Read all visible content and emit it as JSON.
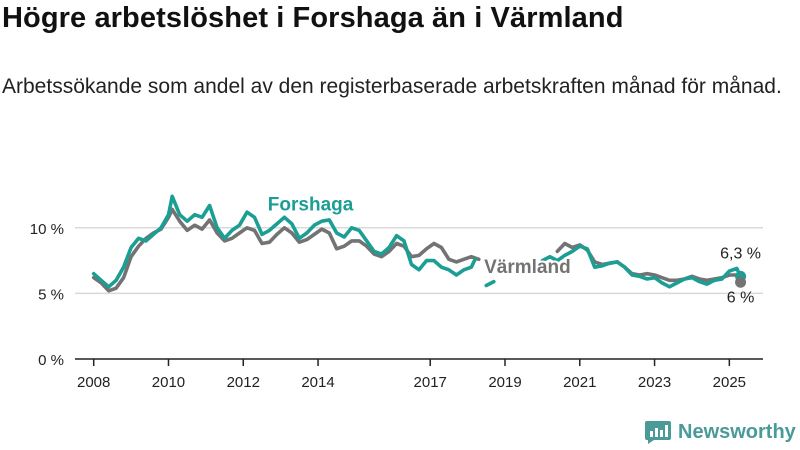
{
  "header": {
    "title": "Högre arbetslöshet i Forshaga än i Värmland",
    "subtitle": "Arbetssökande som andel av den registerbaserade arbetskraften månad för månad."
  },
  "branding": {
    "name": "Newsworthy",
    "icon": "newsworthy-logo-icon",
    "color": "#4a9a98"
  },
  "colors": {
    "forshaga": "#1b9e94",
    "varmland": "#737373",
    "grid": "#d9d9d9",
    "axis": "#222222"
  },
  "chart_data": {
    "type": "line",
    "ylim": [
      0,
      12.5
    ],
    "xlim": [
      2007.5,
      2025.9
    ],
    "y_ticks": [
      {
        "value": 0,
        "label": "0 %"
      },
      {
        "value": 5,
        "label": "5 %"
      },
      {
        "value": 10,
        "label": "10 %"
      }
    ],
    "x_ticks": [
      {
        "value": 2008,
        "label": "2008"
      },
      {
        "value": 2010,
        "label": "2010"
      },
      {
        "value": 2012,
        "label": "2012"
      },
      {
        "value": 2014,
        "label": "2014"
      },
      {
        "value": 2017,
        "label": "2017"
      },
      {
        "value": 2019,
        "label": "2019"
      },
      {
        "value": 2021,
        "label": "2021"
      },
      {
        "value": 2023,
        "label": "2023"
      },
      {
        "value": 2025,
        "label": "2025"
      }
    ],
    "grid": true,
    "series": [
      {
        "name": "Forshaga",
        "color": "#1b9e94",
        "segments": [
          [
            [
              2008.0,
              6.5
            ],
            [
              2008.2,
              6.0
            ],
            [
              2008.4,
              5.5
            ],
            [
              2008.6,
              6.0
            ],
            [
              2008.8,
              7.0
            ],
            [
              2009.0,
              8.5
            ],
            [
              2009.2,
              9.2
            ],
            [
              2009.4,
              9.0
            ],
            [
              2009.6,
              9.5
            ],
            [
              2009.8,
              10.0
            ],
            [
              2010.0,
              11.0
            ],
            [
              2010.1,
              12.4
            ],
            [
              2010.3,
              11.0
            ],
            [
              2010.5,
              10.5
            ],
            [
              2010.7,
              11.0
            ],
            [
              2010.9,
              10.8
            ],
            [
              2011.1,
              11.7
            ],
            [
              2011.3,
              10.0
            ],
            [
              2011.5,
              9.2
            ],
            [
              2011.7,
              9.8
            ],
            [
              2011.9,
              10.2
            ],
            [
              2012.1,
              11.2
            ],
            [
              2012.3,
              10.8
            ],
            [
              2012.5,
              9.5
            ],
            [
              2012.7,
              9.8
            ],
            [
              2012.9,
              10.3
            ],
            [
              2013.1,
              10.8
            ],
            [
              2013.3,
              10.3
            ],
            [
              2013.5,
              9.2
            ],
            [
              2013.7,
              9.6
            ],
            [
              2013.9,
              10.2
            ],
            [
              2014.1,
              10.5
            ],
            [
              2014.3,
              10.6
            ],
            [
              2014.5,
              9.6
            ],
            [
              2014.7,
              9.3
            ],
            [
              2014.9,
              10.0
            ],
            [
              2015.1,
              9.8
            ],
            [
              2015.3,
              9.0
            ],
            [
              2015.5,
              8.2
            ],
            [
              2015.7,
              8.0
            ],
            [
              2015.9,
              8.5
            ],
            [
              2016.1,
              9.4
            ],
            [
              2016.3,
              9.0
            ],
            [
              2016.5,
              7.2
            ],
            [
              2016.7,
              6.8
            ],
            [
              2016.9,
              7.5
            ],
            [
              2017.1,
              7.5
            ],
            [
              2017.3,
              7.0
            ],
            [
              2017.5,
              6.8
            ],
            [
              2017.7,
              6.4
            ],
            [
              2017.9,
              6.8
            ],
            [
              2018.1,
              7.0
            ],
            [
              2018.2,
              7.6
            ]
          ],
          [
            [
              2018.5,
              5.6
            ],
            [
              2018.7,
              5.9
            ]
          ],
          [
            [
              2020.0,
              7.5
            ],
            [
              2020.2,
              7.8
            ],
            [
              2020.4,
              7.5
            ],
            [
              2020.6,
              7.9
            ],
            [
              2020.8,
              8.2
            ],
            [
              2021.0,
              8.6
            ],
            [
              2021.2,
              8.4
            ],
            [
              2021.4,
              7.0
            ],
            [
              2021.6,
              7.1
            ],
            [
              2021.8,
              7.3
            ],
            [
              2022.0,
              7.4
            ],
            [
              2022.2,
              7.0
            ],
            [
              2022.4,
              6.4
            ],
            [
              2022.6,
              6.3
            ],
            [
              2022.8,
              6.1
            ],
            [
              2023.0,
              6.2
            ],
            [
              2023.2,
              5.8
            ],
            [
              2023.4,
              5.5
            ],
            [
              2023.6,
              5.8
            ],
            [
              2023.8,
              6.1
            ],
            [
              2024.0,
              6.2
            ],
            [
              2024.2,
              5.9
            ],
            [
              2024.4,
              5.7
            ],
            [
              2024.6,
              6.0
            ],
            [
              2024.8,
              6.1
            ],
            [
              2025.0,
              6.7
            ],
            [
              2025.2,
              6.9
            ],
            [
              2025.3,
              6.3
            ]
          ]
        ],
        "end_label": "6,3 %"
      },
      {
        "name": "Värmland",
        "color": "#737373",
        "segments": [
          [
            [
              2008.0,
              6.2
            ],
            [
              2008.2,
              5.8
            ],
            [
              2008.4,
              5.2
            ],
            [
              2008.6,
              5.4
            ],
            [
              2008.8,
              6.2
            ],
            [
              2009.0,
              7.8
            ],
            [
              2009.2,
              8.6
            ],
            [
              2009.4,
              9.2
            ],
            [
              2009.6,
              9.6
            ],
            [
              2009.8,
              9.9
            ],
            [
              2010.0,
              10.8
            ],
            [
              2010.1,
              11.4
            ],
            [
              2010.3,
              10.5
            ],
            [
              2010.5,
              9.8
            ],
            [
              2010.7,
              10.2
            ],
            [
              2010.9,
              9.9
            ],
            [
              2011.1,
              10.6
            ],
            [
              2011.3,
              9.6
            ],
            [
              2011.5,
              9.0
            ],
            [
              2011.7,
              9.2
            ],
            [
              2011.9,
              9.6
            ],
            [
              2012.1,
              10.0
            ],
            [
              2012.3,
              9.8
            ],
            [
              2012.5,
              8.8
            ],
            [
              2012.7,
              8.9
            ],
            [
              2012.9,
              9.5
            ],
            [
              2013.1,
              10.0
            ],
            [
              2013.3,
              9.6
            ],
            [
              2013.5,
              8.9
            ],
            [
              2013.7,
              9.1
            ],
            [
              2013.9,
              9.5
            ],
            [
              2014.1,
              9.9
            ],
            [
              2014.3,
              9.6
            ],
            [
              2014.5,
              8.4
            ],
            [
              2014.7,
              8.6
            ],
            [
              2014.9,
              9.0
            ],
            [
              2015.1,
              9.0
            ],
            [
              2015.3,
              8.6
            ],
            [
              2015.5,
              8.0
            ],
            [
              2015.7,
              7.8
            ],
            [
              2015.9,
              8.2
            ],
            [
              2016.1,
              8.8
            ],
            [
              2016.3,
              8.6
            ],
            [
              2016.5,
              7.8
            ],
            [
              2016.7,
              7.9
            ],
            [
              2016.9,
              8.4
            ],
            [
              2017.1,
              8.8
            ],
            [
              2017.3,
              8.5
            ],
            [
              2017.5,
              7.6
            ],
            [
              2017.7,
              7.4
            ],
            [
              2017.9,
              7.6
            ],
            [
              2018.1,
              7.8
            ],
            [
              2018.3,
              7.6
            ]
          ],
          [
            [
              2020.4,
              8.2
            ],
            [
              2020.6,
              8.8
            ],
            [
              2020.8,
              8.5
            ],
            [
              2021.0,
              8.7
            ],
            [
              2021.2,
              8.3
            ],
            [
              2021.4,
              7.4
            ],
            [
              2021.6,
              7.2
            ],
            [
              2021.8,
              7.3
            ],
            [
              2022.0,
              7.4
            ],
            [
              2022.2,
              7.0
            ],
            [
              2022.4,
              6.5
            ],
            [
              2022.6,
              6.4
            ],
            [
              2022.8,
              6.5
            ],
            [
              2023.0,
              6.4
            ],
            [
              2023.2,
              6.2
            ],
            [
              2023.4,
              6.0
            ],
            [
              2023.6,
              6.0
            ],
            [
              2023.8,
              6.1
            ],
            [
              2024.0,
              6.3
            ],
            [
              2024.2,
              6.1
            ],
            [
              2024.4,
              6.0
            ],
            [
              2024.6,
              6.1
            ],
            [
              2024.8,
              6.2
            ],
            [
              2025.0,
              6.4
            ],
            [
              2025.2,
              6.4
            ],
            [
              2025.3,
              6.0
            ]
          ]
        ],
        "end_label": "6 %"
      }
    ],
    "annotations": [
      {
        "text": "Forshaga",
        "series": "Forshaga",
        "x": 2013.8,
        "y": 11.3
      },
      {
        "text": "Värmland",
        "series": "Värmland",
        "x": 2019.6,
        "y": 6.55
      }
    ]
  }
}
